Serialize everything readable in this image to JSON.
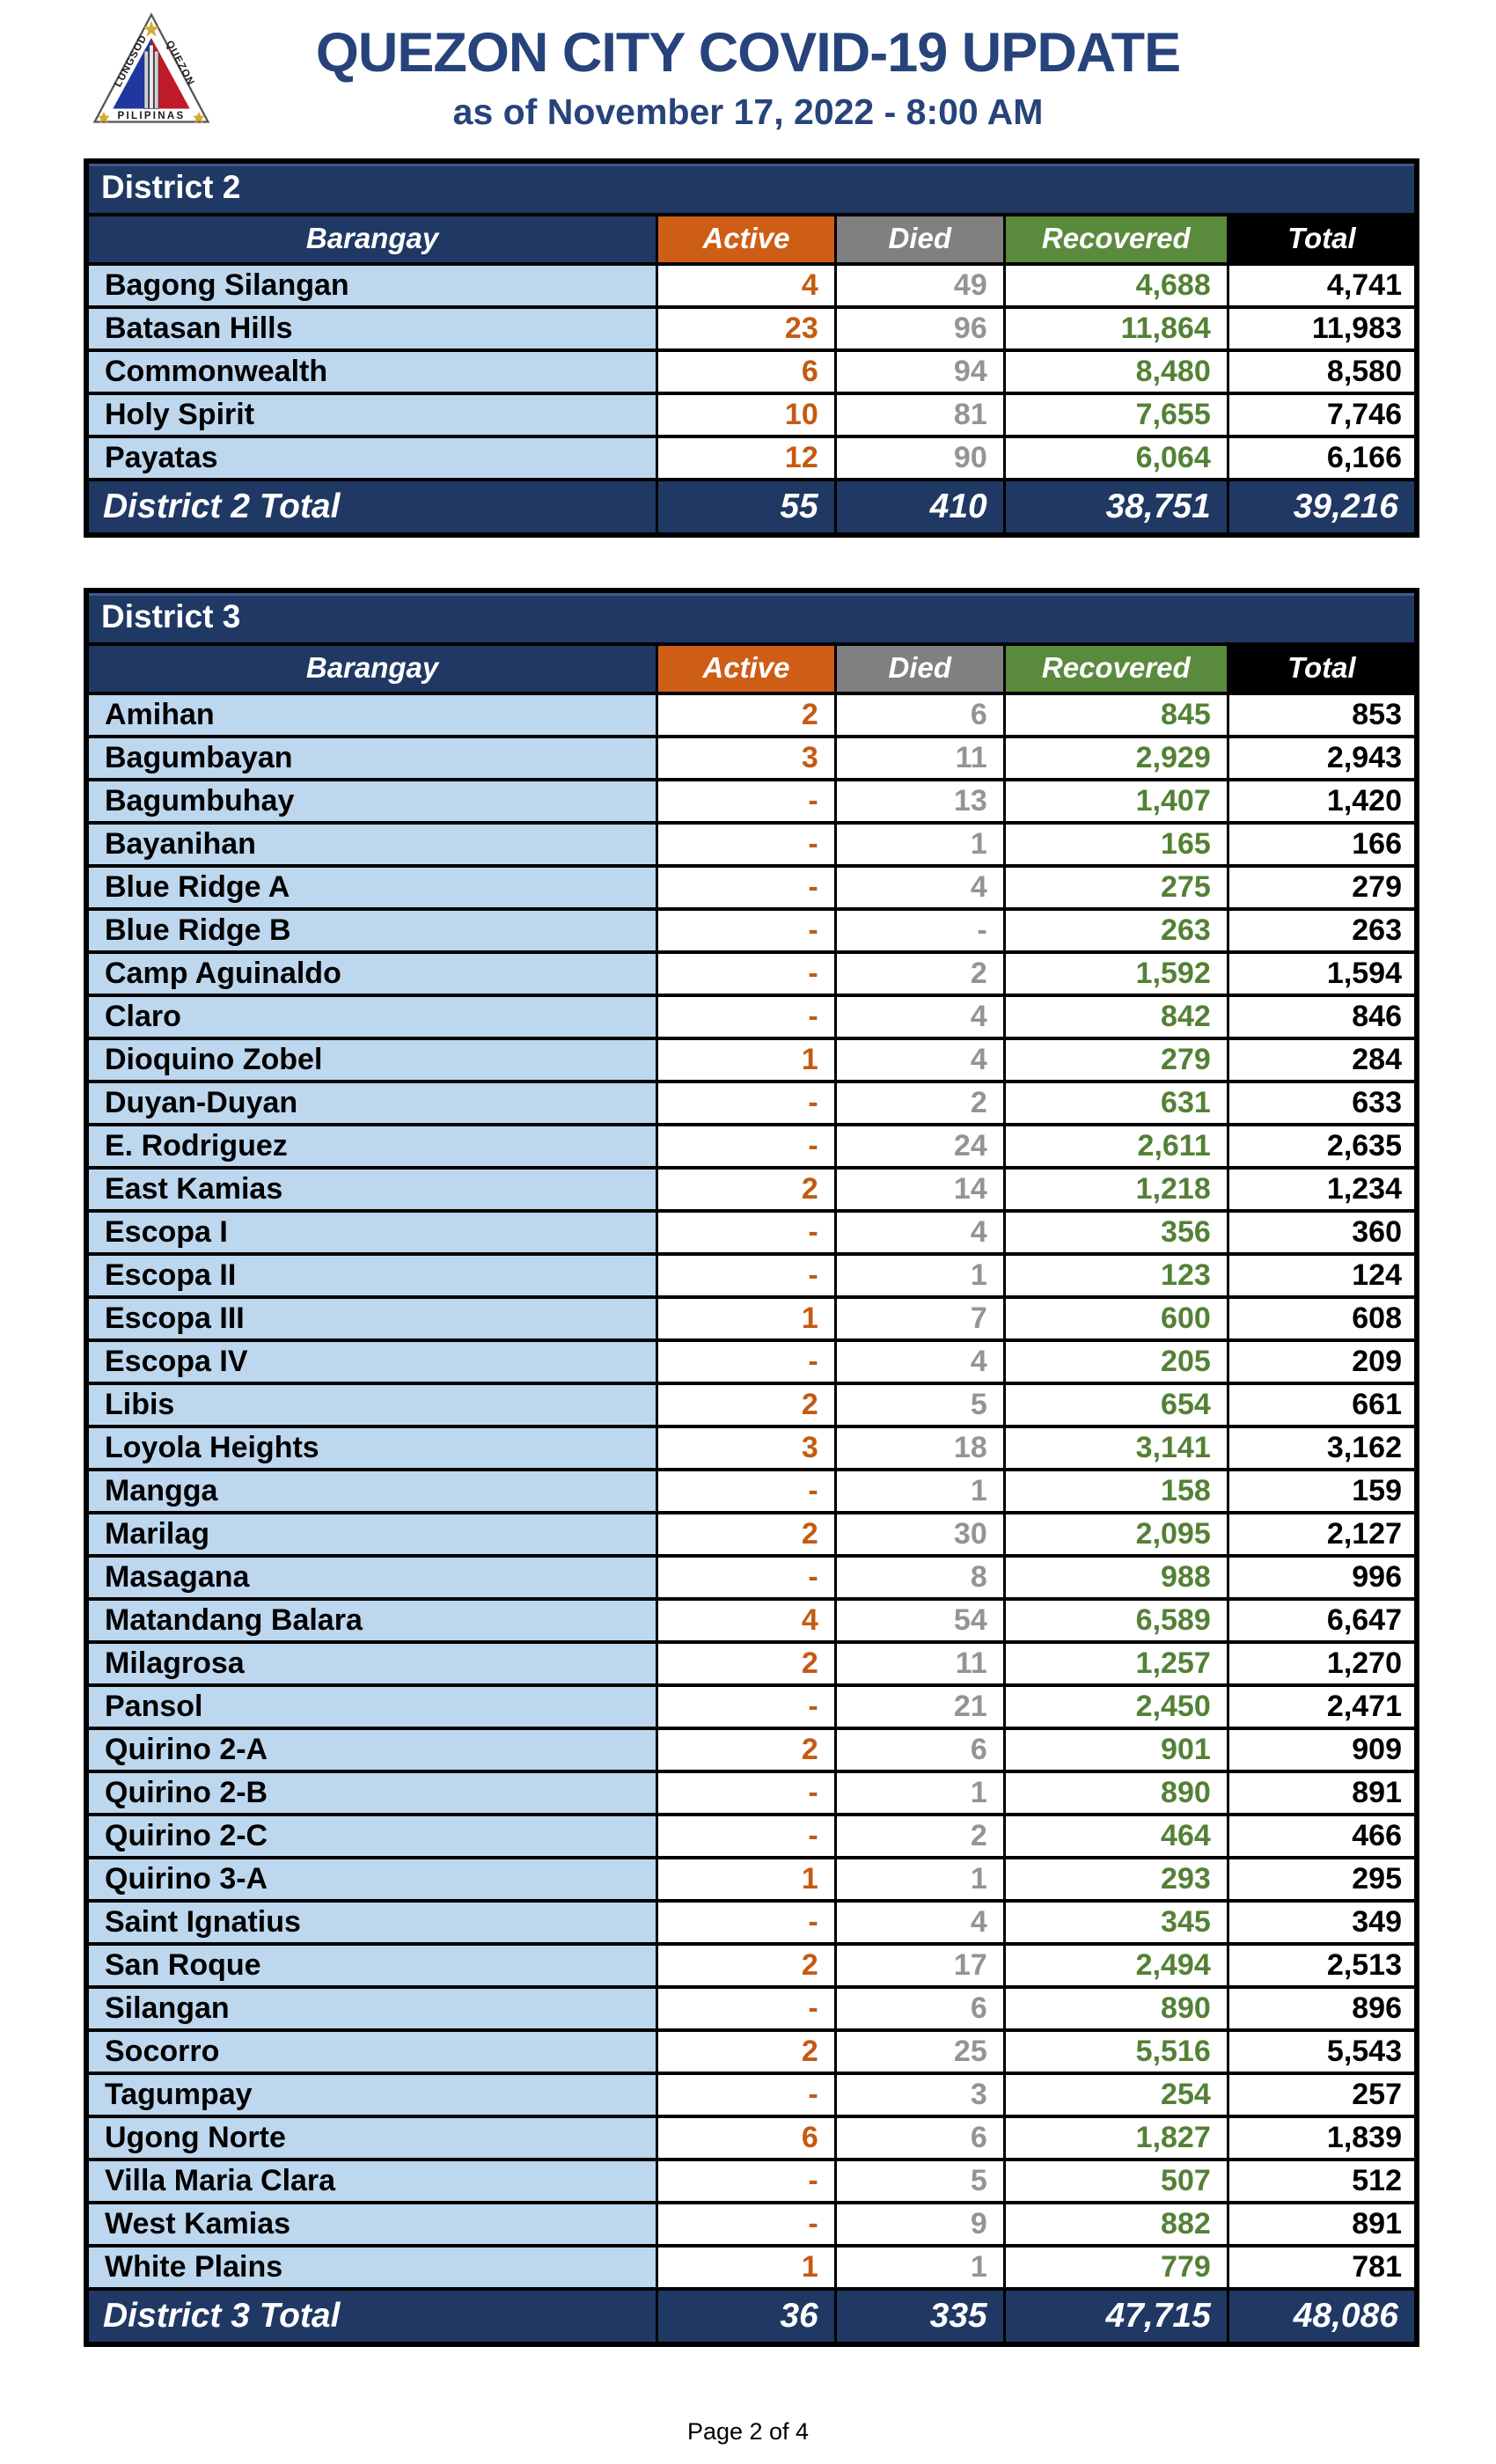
{
  "header": {
    "title": "QUEZON CITY COVID-19 UPDATE",
    "subtitle": "as of November 17, 2022 - 8:00 AM",
    "logo": "quezon-city-seal"
  },
  "table": {
    "columns": [
      "Barangay",
      "Active",
      "Died",
      "Recovered",
      "Total"
    ]
  },
  "districts": [
    {
      "name": "District 2",
      "rows": [
        [
          "Bagong Silangan",
          "4",
          "49",
          "4,688",
          "4,741"
        ],
        [
          "Batasan Hills",
          "23",
          "96",
          "11,864",
          "11,983"
        ],
        [
          "Commonwealth",
          "6",
          "94",
          "8,480",
          "8,580"
        ],
        [
          "Holy Spirit",
          "10",
          "81",
          "7,655",
          "7,746"
        ],
        [
          "Payatas",
          "12",
          "90",
          "6,064",
          "6,166"
        ]
      ],
      "total_row": [
        "District 2 Total",
        "55",
        "410",
        "38,751",
        "39,216"
      ]
    },
    {
      "name": "District 3",
      "rows": [
        [
          "Amihan",
          "2",
          "6",
          "845",
          "853"
        ],
        [
          "Bagumbayan",
          "3",
          "11",
          "2,929",
          "2,943"
        ],
        [
          "Bagumbuhay",
          "-",
          "13",
          "1,407",
          "1,420"
        ],
        [
          "Bayanihan",
          "-",
          "1",
          "165",
          "166"
        ],
        [
          "Blue Ridge A",
          "-",
          "4",
          "275",
          "279"
        ],
        [
          "Blue Ridge B",
          "-",
          "-",
          "263",
          "263"
        ],
        [
          "Camp Aguinaldo",
          "-",
          "2",
          "1,592",
          "1,594"
        ],
        [
          "Claro",
          "-",
          "4",
          "842",
          "846"
        ],
        [
          "Dioquino Zobel",
          "1",
          "4",
          "279",
          "284"
        ],
        [
          "Duyan-Duyan",
          "-",
          "2",
          "631",
          "633"
        ],
        [
          "E. Rodriguez",
          "-",
          "24",
          "2,611",
          "2,635"
        ],
        [
          "East Kamias",
          "2",
          "14",
          "1,218",
          "1,234"
        ],
        [
          "Escopa I",
          "-",
          "4",
          "356",
          "360"
        ],
        [
          "Escopa II",
          "-",
          "1",
          "123",
          "124"
        ],
        [
          "Escopa III",
          "1",
          "7",
          "600",
          "608"
        ],
        [
          "Escopa IV",
          "-",
          "4",
          "205",
          "209"
        ],
        [
          "Libis",
          "2",
          "5",
          "654",
          "661"
        ],
        [
          "Loyola Heights",
          "3",
          "18",
          "3,141",
          "3,162"
        ],
        [
          "Mangga",
          "-",
          "1",
          "158",
          "159"
        ],
        [
          "Marilag",
          "2",
          "30",
          "2,095",
          "2,127"
        ],
        [
          "Masagana",
          "-",
          "8",
          "988",
          "996"
        ],
        [
          "Matandang Balara",
          "4",
          "54",
          "6,589",
          "6,647"
        ],
        [
          "Milagrosa",
          "2",
          "11",
          "1,257",
          "1,270"
        ],
        [
          "Pansol",
          "-",
          "21",
          "2,450",
          "2,471"
        ],
        [
          "Quirino 2-A",
          "2",
          "6",
          "901",
          "909"
        ],
        [
          "Quirino 2-B",
          "-",
          "1",
          "890",
          "891"
        ],
        [
          "Quirino 2-C",
          "-",
          "2",
          "464",
          "466"
        ],
        [
          "Quirino 3-A",
          "1",
          "1",
          "293",
          "295"
        ],
        [
          "Saint Ignatius",
          "-",
          "4",
          "345",
          "349"
        ],
        [
          "San Roque",
          "2",
          "17",
          "2,494",
          "2,513"
        ],
        [
          "Silangan",
          "-",
          "6",
          "890",
          "896"
        ],
        [
          "Socorro",
          "2",
          "25",
          "5,516",
          "5,543"
        ],
        [
          "Tagumpay",
          "-",
          "3",
          "254",
          "257"
        ],
        [
          "Ugong Norte",
          "6",
          "6",
          "1,827",
          "1,839"
        ],
        [
          "Villa Maria Clara",
          "-",
          "5",
          "507",
          "512"
        ],
        [
          "West Kamias",
          "-",
          "9",
          "882",
          "891"
        ],
        [
          "White Plains",
          "1",
          "1",
          "779",
          "781"
        ]
      ],
      "total_row": [
        "District 3 Total",
        "36",
        "335",
        "47,715",
        "48,086"
      ]
    }
  ],
  "footer": {
    "page_label": "Page 2 of 4"
  },
  "colors": {
    "navy": "#1F3864",
    "title_navy": "#27437B",
    "active_orange": "#CE5E16",
    "active_value_orange": "#C55A11",
    "died_gray": "#808080",
    "died_value_gray": "#949494",
    "recovered_green": "#5A8A3C",
    "recovered_value_green": "#538135",
    "total_black": "#000000",
    "row_blue": "#BDD7EE"
  }
}
